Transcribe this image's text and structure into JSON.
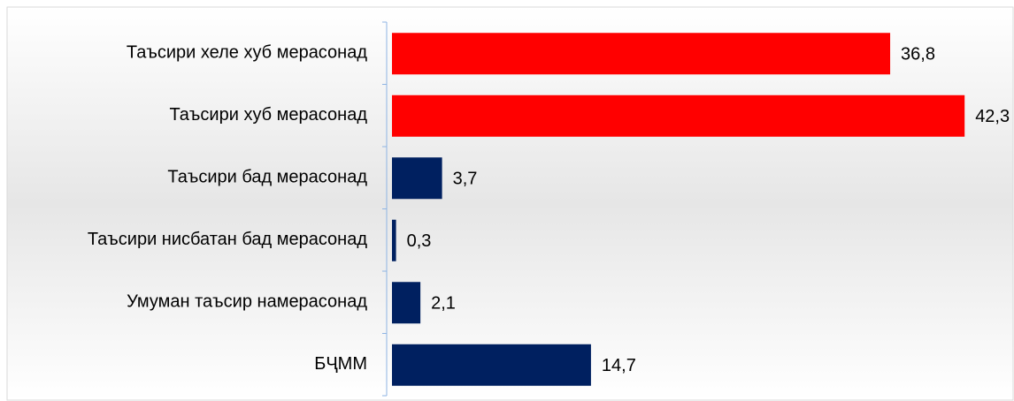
{
  "chart_data": {
    "type": "bar",
    "orientation": "horizontal",
    "categories": [
      "Таъсири хеле хуб мерасонад",
      "Таъсири хуб мерасонад",
      "Таъсири бад мерасонад",
      "Таъсири нисбатан бад мерасонад",
      "Умуман таъсир намерасонад",
      "БҶММ"
    ],
    "values": [
      36.8,
      42.3,
      3.7,
      0.3,
      2.1,
      14.7
    ],
    "value_labels": [
      "36,8",
      "42,3",
      "3,7",
      "0,3",
      "2,1",
      "14,7"
    ],
    "colors": [
      "#ff0000",
      "#ff0000",
      "#002060",
      "#002060",
      "#002060",
      "#002060"
    ]
  }
}
